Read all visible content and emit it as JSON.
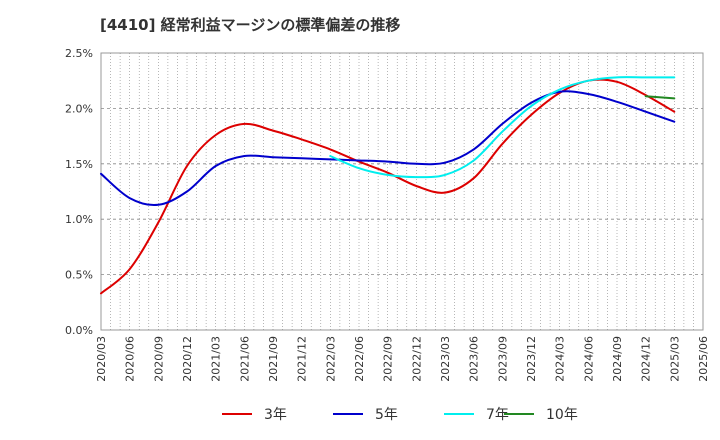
{
  "chart_data": {
    "type": "line",
    "title": "[4410]  経常利益マージンの標準偏差の推移",
    "xlabel": "",
    "ylabel": "",
    "ylim": [
      0,
      2.5
    ],
    "y_ticks": [
      "0.0%",
      "0.5%",
      "1.0%",
      "1.5%",
      "2.0%",
      "2.5%"
    ],
    "x_ticks": [
      "2020/03",
      "2020/06",
      "2020/09",
      "2020/12",
      "2021/03",
      "2021/06",
      "2021/09",
      "2021/12",
      "2022/03",
      "2022/06",
      "2022/09",
      "2022/12",
      "2023/03",
      "2023/06",
      "2023/09",
      "2023/12",
      "2024/03",
      "2024/06",
      "2024/09",
      "2024/12",
      "2025/03",
      "2025/06"
    ],
    "grid": true,
    "legend_position": "bottom",
    "series": [
      {
        "name": "3年",
        "color": "#dd0000",
        "points": [
          [
            "2020/03",
            0.33
          ],
          [
            "2020/06",
            0.55
          ],
          [
            "2020/09",
            0.97
          ],
          [
            "2020/12",
            1.48
          ],
          [
            "2021/03",
            1.76
          ],
          [
            "2021/06",
            1.86
          ],
          [
            "2021/09",
            1.8
          ],
          [
            "2021/12",
            1.72
          ],
          [
            "2022/03",
            1.63
          ],
          [
            "2022/06",
            1.52
          ],
          [
            "2022/09",
            1.42
          ],
          [
            "2022/12",
            1.3
          ],
          [
            "2023/03",
            1.24
          ],
          [
            "2023/06",
            1.37
          ],
          [
            "2023/09",
            1.68
          ],
          [
            "2023/12",
            1.94
          ],
          [
            "2024/03",
            2.14
          ],
          [
            "2024/06",
            2.25
          ],
          [
            "2024/09",
            2.24
          ],
          [
            "2024/12",
            2.12
          ],
          [
            "2025/03",
            1.97
          ]
        ]
      },
      {
        "name": "5年",
        "color": "#0000cc",
        "points": [
          [
            "2020/03",
            1.41
          ],
          [
            "2020/06",
            1.19
          ],
          [
            "2020/09",
            1.13
          ],
          [
            "2020/12",
            1.25
          ],
          [
            "2021/03",
            1.48
          ],
          [
            "2021/06",
            1.57
          ],
          [
            "2021/09",
            1.56
          ],
          [
            "2021/12",
            1.55
          ],
          [
            "2022/03",
            1.54
          ],
          [
            "2022/06",
            1.53
          ],
          [
            "2022/09",
            1.52
          ],
          [
            "2022/12",
            1.5
          ],
          [
            "2023/03",
            1.51
          ],
          [
            "2023/06",
            1.63
          ],
          [
            "2023/09",
            1.86
          ],
          [
            "2023/12",
            2.05
          ],
          [
            "2024/03",
            2.15
          ],
          [
            "2024/06",
            2.13
          ],
          [
            "2024/09",
            2.06
          ],
          [
            "2024/12",
            1.97
          ],
          [
            "2025/03",
            1.88
          ]
        ]
      },
      {
        "name": "7年",
        "color": "#00eeee",
        "points": [
          [
            "2022/03",
            1.57
          ],
          [
            "2022/06",
            1.46
          ],
          [
            "2022/09",
            1.4
          ],
          [
            "2022/12",
            1.38
          ],
          [
            "2023/03",
            1.4
          ],
          [
            "2023/06",
            1.53
          ],
          [
            "2023/09",
            1.79
          ],
          [
            "2023/12",
            2.02
          ],
          [
            "2024/03",
            2.17
          ],
          [
            "2024/06",
            2.25
          ],
          [
            "2024/09",
            2.28
          ],
          [
            "2024/12",
            2.28
          ],
          [
            "2025/03",
            2.28
          ]
        ]
      },
      {
        "name": "10年",
        "color": "#228822",
        "points": [
          [
            "2024/12",
            2.11
          ],
          [
            "2025/03",
            2.09
          ]
        ]
      }
    ]
  }
}
